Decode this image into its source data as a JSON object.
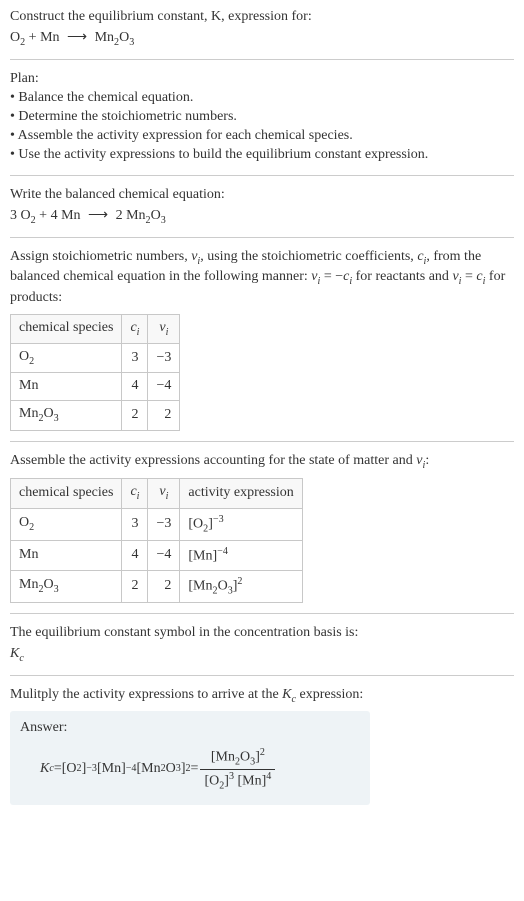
{
  "header": {
    "line1": "Construct the equilibrium constant, K, expression for:",
    "eq_left_a": "O",
    "eq_left_a_sub": "2",
    "plus1": " + Mn ",
    "arrow": "⟶",
    "eq_right_a": " Mn",
    "eq_right_a_sub": "2",
    "eq_right_b": "O",
    "eq_right_b_sub": "3"
  },
  "plan": {
    "title": "Plan:",
    "b1": "• Balance the chemical equation.",
    "b2": "• Determine the stoichiometric numbers.",
    "b3": "• Assemble the activity expression for each chemical species.",
    "b4": "• Use the activity expressions to build the equilibrium constant expression."
  },
  "balanced": {
    "title": "Write the balanced chemical equation:",
    "c1": "3 O",
    "c1_sub": "2",
    "plus": " + 4 Mn ",
    "arrow": "⟶",
    "c2": " 2 Mn",
    "c2_sub1": "2",
    "c2b": "O",
    "c2_sub2": "3"
  },
  "assign": {
    "text1": "Assign stoichiometric numbers, ",
    "nu": "ν",
    "i": "i",
    "text2": ", using the stoichiometric coefficients, ",
    "c": "c",
    "text3": ", from the balanced chemical equation in the following manner: ",
    "eq1a": "ν",
    "eq1b": " = −",
    "eq1c": "c",
    "text4": " for reactants and ",
    "eq2a": "ν",
    "eq2b": " = ",
    "eq2c": "c",
    "text5": " for products:"
  },
  "table1": {
    "h1": "chemical species",
    "h2": "c",
    "h2_sub": "i",
    "h3": "ν",
    "h3_sub": "i",
    "r1c1a": "O",
    "r1c1a_sub": "2",
    "r1c2": "3",
    "r1c3": "−3",
    "r2c1": "Mn",
    "r2c2": "4",
    "r2c3": "−4",
    "r3c1a": "Mn",
    "r3c1a_sub": "2",
    "r3c1b": "O",
    "r3c1b_sub": "3",
    "r3c2": "2",
    "r3c3": "2"
  },
  "assemble": {
    "text1": "Assemble the activity expressions accounting for the state of matter and ",
    "nu": "ν",
    "i": "i",
    "colon": ":"
  },
  "table2": {
    "h1": "chemical species",
    "h2": "c",
    "h2_sub": "i",
    "h3": "ν",
    "h3_sub": "i",
    "h4": "activity expression",
    "r1c1a": "O",
    "r1c1a_sub": "2",
    "r1c2": "3",
    "r1c3": "−3",
    "r1c4a": "[O",
    "r1c4a_sub": "2",
    "r1c4b": "]",
    "r1c4_sup": "−3",
    "r2c1": "Mn",
    "r2c2": "4",
    "r2c3": "−4",
    "r2c4a": "[Mn]",
    "r2c4_sup": "−4",
    "r3c1a": "Mn",
    "r3c1a_sub": "2",
    "r3c1b": "O",
    "r3c1b_sub": "3",
    "r3c2": "2",
    "r3c3": "2",
    "r3c4a": "[Mn",
    "r3c4a_sub": "2",
    "r3c4b": "O",
    "r3c4b_sub": "3",
    "r3c4c": "]",
    "r3c4_sup": "2"
  },
  "sym": {
    "text": "The equilibrium constant symbol in the concentration basis is:",
    "K": "K",
    "c": "c"
  },
  "mult": {
    "text1": "Mulitply the activity expressions to arrive at the ",
    "K": "K",
    "c": "c",
    "text2": " expression:"
  },
  "answer": {
    "label": "Answer:",
    "K": "K",
    "c": "c",
    "eq": " = ",
    "t1a": "[O",
    "t1a_sub": "2",
    "t1b": "]",
    "t1_sup": "−3",
    "t2a": " [Mn]",
    "t2_sup": "−4",
    "t3a": " [Mn",
    "t3a_sub": "2",
    "t3b": "O",
    "t3b_sub": "3",
    "t3c": "]",
    "t3_sup": "2",
    "eq2": " = ",
    "num_a": "[Mn",
    "num_a_sub": "2",
    "num_b": "O",
    "num_b_sub": "3",
    "num_c": "]",
    "num_sup": "2",
    "den_a": "[O",
    "den_a_sub": "2",
    "den_b": "]",
    "den_sup1": "3",
    "den_c": " [Mn]",
    "den_sup2": "4"
  }
}
